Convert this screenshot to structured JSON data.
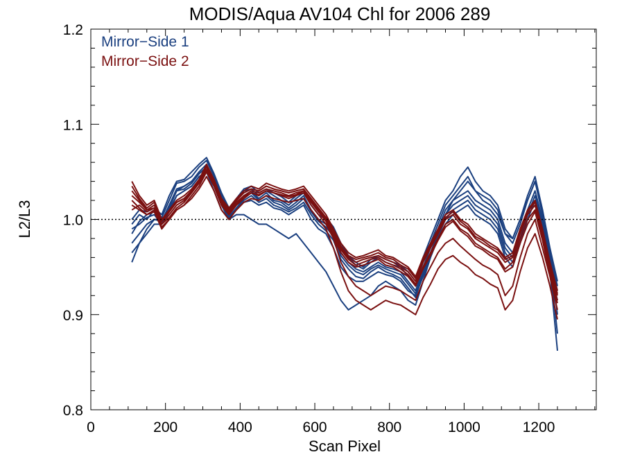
{
  "chart_data": {
    "type": "line",
    "title": "MODIS/Aqua AV104 Chl for 2006 289",
    "xlabel": "Scan Pixel",
    "ylabel": "L2/L3",
    "xlim": [
      0,
      1354
    ],
    "ylim": [
      0.8,
      1.2
    ],
    "xticks": [
      0,
      200,
      400,
      600,
      800,
      1000,
      1200
    ],
    "yticks": [
      0.8,
      0.9,
      1.0,
      1.1,
      1.2
    ],
    "xtick_labels": [
      "0",
      "200",
      "400",
      "600",
      "800",
      "1000",
      "1200"
    ],
    "ytick_labels": [
      "0.8",
      "0.9",
      "1.0",
      "1.1",
      "1.2"
    ],
    "reference_line": {
      "y": 1.0,
      "style": "dotted"
    },
    "legend": {
      "placement": "top-left",
      "entries": [
        "Mirror−Side 1",
        "Mirror−Side 2"
      ]
    },
    "colors": {
      "mirror_side_1": "#1a3f7f",
      "mirror_side_2": "#7a1010"
    },
    "x": [
      110,
      130,
      150,
      170,
      190,
      210,
      230,
      250,
      270,
      290,
      310,
      330,
      350,
      370,
      390,
      410,
      430,
      450,
      470,
      490,
      510,
      530,
      550,
      570,
      590,
      610,
      630,
      650,
      670,
      690,
      710,
      730,
      750,
      770,
      790,
      810,
      830,
      850,
      870,
      890,
      910,
      930,
      950,
      970,
      990,
      1010,
      1030,
      1050,
      1070,
      1090,
      1110,
      1130,
      1150,
      1170,
      1190,
      1210,
      1230,
      1250
    ],
    "series": [
      {
        "group": "Mirror−Side 1",
        "values": [
          0.985,
          0.998,
          1.005,
          1.008,
          0.998,
          1.015,
          1.032,
          1.035,
          1.04,
          1.05,
          1.058,
          1.04,
          1.02,
          1.005,
          1.015,
          1.025,
          1.03,
          1.022,
          1.028,
          1.02,
          1.018,
          1.012,
          1.018,
          1.025,
          1.01,
          1.0,
          0.995,
          0.985,
          0.965,
          0.955,
          0.948,
          0.945,
          0.95,
          0.955,
          0.95,
          0.948,
          0.945,
          0.935,
          0.925,
          0.95,
          0.97,
          0.99,
          1.01,
          1.02,
          1.025,
          1.03,
          1.02,
          1.015,
          1.01,
          1.0,
          0.975,
          0.965,
          0.985,
          1.01,
          1.03,
          1.0,
          0.96,
          0.925
        ]
      },
      {
        "group": "Mirror−Side 1",
        "values": [
          0.995,
          1.005,
          1.0,
          1.01,
          1.002,
          1.02,
          1.038,
          1.04,
          1.045,
          1.055,
          1.062,
          1.045,
          1.025,
          1.01,
          1.02,
          1.03,
          1.032,
          1.025,
          1.03,
          1.025,
          1.02,
          1.015,
          1.022,
          1.028,
          1.015,
          1.005,
          1.0,
          0.99,
          0.97,
          0.96,
          0.952,
          0.948,
          0.955,
          0.96,
          0.955,
          0.952,
          0.95,
          0.94,
          0.93,
          0.955,
          0.975,
          0.995,
          1.015,
          1.025,
          1.035,
          1.045,
          1.03,
          1.025,
          1.02,
          1.01,
          0.985,
          0.975,
          0.995,
          1.02,
          1.04,
          1.005,
          0.965,
          0.93
        ]
      },
      {
        "group": "Mirror−Side 1",
        "values": [
          0.965,
          0.975,
          0.985,
          0.995,
          0.995,
          1.008,
          1.025,
          1.03,
          1.035,
          1.045,
          1.05,
          1.035,
          1.015,
          1.0,
          1.01,
          1.018,
          1.02,
          1.015,
          1.018,
          1.012,
          1.01,
          1.005,
          1.01,
          1.015,
          1.0,
          0.99,
          0.985,
          0.97,
          0.95,
          0.94,
          0.935,
          0.935,
          0.94,
          0.945,
          0.942,
          0.94,
          0.935,
          0.925,
          0.92,
          0.94,
          0.96,
          0.98,
          0.995,
          1.005,
          1.01,
          1.015,
          1.005,
          1.0,
          0.995,
          0.985,
          0.96,
          0.95,
          0.975,
          1.0,
          1.02,
          0.99,
          0.95,
          0.915
        ]
      },
      {
        "group": "Mirror−Side 1",
        "values": [
          0.955,
          0.975,
          0.99,
          1.0,
          1.0,
          1.01,
          1.025,
          1.03,
          1.035,
          1.045,
          1.05,
          1.03,
          1.01,
          1.0,
          1.005,
          1.005,
          1.0,
          0.995,
          0.995,
          0.99,
          0.985,
          0.98,
          0.985,
          0.975,
          0.965,
          0.955,
          0.945,
          0.93,
          0.915,
          0.905,
          0.91,
          0.915,
          0.92,
          0.93,
          0.935,
          0.93,
          0.925,
          0.915,
          0.91,
          0.935,
          0.96,
          0.985,
          1.005,
          1.02,
          1.03,
          1.04,
          1.03,
          1.02,
          1.015,
          1.005,
          0.985,
          0.98,
          1.0,
          1.02,
          1.04,
          1.01,
          0.96,
          0.9
        ]
      },
      {
        "group": "Mirror−Side 1",
        "values": [
          1.0,
          1.01,
          1.008,
          1.012,
          1.005,
          1.025,
          1.04,
          1.042,
          1.05,
          1.058,
          1.065,
          1.048,
          1.028,
          1.012,
          1.022,
          1.032,
          1.035,
          1.028,
          1.032,
          1.028,
          1.024,
          1.018,
          1.025,
          1.03,
          1.018,
          1.008,
          1.002,
          0.992,
          0.975,
          0.962,
          0.955,
          0.95,
          0.958,
          0.962,
          0.958,
          0.955,
          0.952,
          0.945,
          0.935,
          0.96,
          0.98,
          1.0,
          1.02,
          1.03,
          1.045,
          1.055,
          1.04,
          1.03,
          1.025,
          1.015,
          0.99,
          0.98,
          1.0,
          1.025,
          1.045,
          1.01,
          0.97,
          0.935
        ]
      },
      {
        "group": "Mirror−Side 1",
        "values": [
          0.99,
          0.995,
          1.002,
          1.005,
          0.995,
          1.012,
          1.03,
          1.032,
          1.038,
          1.048,
          1.055,
          1.038,
          1.018,
          1.003,
          1.012,
          1.022,
          1.028,
          1.02,
          1.025,
          1.018,
          1.015,
          1.01,
          1.015,
          1.022,
          1.008,
          0.998,
          0.992,
          0.982,
          0.962,
          0.952,
          0.945,
          0.942,
          0.948,
          0.952,
          0.948,
          0.945,
          0.942,
          0.932,
          0.922,
          0.945,
          0.965,
          0.985,
          1.005,
          1.015,
          1.02,
          1.025,
          1.015,
          1.01,
          1.005,
          0.995,
          0.97,
          0.96,
          0.98,
          1.005,
          1.025,
          0.995,
          0.955,
          0.88
        ]
      },
      {
        "group": "Mirror−Side 1",
        "values": [
          0.975,
          0.985,
          0.995,
          1.0,
          0.998,
          1.015,
          1.03,
          1.035,
          1.04,
          1.048,
          1.055,
          1.035,
          1.018,
          1.002,
          1.012,
          1.02,
          1.025,
          1.018,
          1.022,
          1.015,
          1.012,
          1.008,
          1.012,
          1.018,
          1.005,
          0.995,
          0.988,
          0.978,
          0.958,
          0.948,
          0.94,
          0.938,
          0.945,
          0.95,
          0.945,
          0.942,
          0.938,
          0.928,
          0.918,
          0.942,
          0.962,
          0.982,
          1.0,
          1.01,
          1.015,
          1.02,
          1.01,
          1.005,
          1.0,
          0.99,
          0.965,
          0.955,
          0.975,
          1.0,
          1.02,
          0.985,
          0.945,
          0.862
        ]
      },
      {
        "group": "Mirror−Side 2",
        "values": [
          1.03,
          1.02,
          1.01,
          1.015,
          0.995,
          1.005,
          1.015,
          1.02,
          1.03,
          1.04,
          1.055,
          1.04,
          1.02,
          1.01,
          1.02,
          1.028,
          1.032,
          1.03,
          1.035,
          1.032,
          1.03,
          1.028,
          1.03,
          1.032,
          1.02,
          1.01,
          1.0,
          0.985,
          0.97,
          0.96,
          0.955,
          0.958,
          0.96,
          0.962,
          0.958,
          0.955,
          0.95,
          0.945,
          0.935,
          0.955,
          0.97,
          0.985,
          1.0,
          1.005,
          0.995,
          0.99,
          0.98,
          0.975,
          0.97,
          0.965,
          0.955,
          0.96,
          0.985,
          1.005,
          1.015,
          0.985,
          0.95,
          0.92
        ]
      },
      {
        "group": "Mirror−Side 2",
        "values": [
          1.04,
          1.025,
          1.015,
          1.02,
          1.0,
          1.01,
          1.02,
          1.025,
          1.032,
          1.042,
          1.058,
          1.042,
          1.022,
          1.012,
          1.022,
          1.03,
          1.035,
          1.032,
          1.038,
          1.035,
          1.032,
          1.03,
          1.032,
          1.035,
          1.025,
          1.015,
          1.005,
          0.99,
          0.975,
          0.965,
          0.96,
          0.962,
          0.965,
          0.968,
          0.962,
          0.96,
          0.955,
          0.95,
          0.94,
          0.96,
          0.975,
          0.99,
          1.005,
          1.01,
          1.0,
          0.995,
          0.985,
          0.98,
          0.975,
          0.97,
          0.96,
          0.965,
          0.99,
          1.01,
          1.02,
          0.99,
          0.955,
          0.925
        ]
      },
      {
        "group": "Mirror−Side 2",
        "values": [
          1.02,
          1.012,
          1.005,
          1.01,
          0.992,
          1.0,
          1.01,
          1.015,
          1.025,
          1.035,
          1.05,
          1.035,
          1.015,
          1.005,
          1.015,
          1.022,
          1.028,
          1.025,
          1.03,
          1.028,
          1.025,
          1.022,
          1.025,
          1.028,
          1.015,
          1.005,
          0.995,
          0.98,
          0.965,
          0.955,
          0.95,
          0.952,
          0.955,
          0.958,
          0.952,
          0.95,
          0.945,
          0.94,
          0.93,
          0.948,
          0.962,
          0.978,
          0.992,
          0.998,
          0.988,
          0.982,
          0.972,
          0.968,
          0.962,
          0.958,
          0.945,
          0.95,
          0.975,
          0.995,
          1.008,
          0.978,
          0.942,
          0.912
        ]
      },
      {
        "group": "Mirror−Side 2",
        "values": [
          1.01,
          1.015,
          1.008,
          1.012,
          0.995,
          1.002,
          1.012,
          1.018,
          1.028,
          1.038,
          1.052,
          1.038,
          1.018,
          1.008,
          1.018,
          1.025,
          1.03,
          1.028,
          1.032,
          1.03,
          1.028,
          1.025,
          1.028,
          1.03,
          1.018,
          1.008,
          0.998,
          0.982,
          0.968,
          0.958,
          0.952,
          0.955,
          0.958,
          0.96,
          0.955,
          0.952,
          0.948,
          0.942,
          0.932,
          0.95,
          0.965,
          0.98,
          0.995,
          1.0,
          0.99,
          0.985,
          0.975,
          0.97,
          0.965,
          0.96,
          0.948,
          0.955,
          0.98,
          1.0,
          1.01,
          0.982,
          0.945,
          0.915
        ]
      },
      {
        "group": "Mirror−Side 2",
        "values": [
          1.025,
          1.018,
          1.01,
          1.012,
          0.998,
          1.008,
          1.018,
          1.022,
          1.03,
          1.038,
          1.052,
          1.036,
          1.016,
          1.006,
          1.016,
          1.024,
          1.028,
          1.026,
          1.03,
          1.028,
          1.026,
          1.024,
          1.026,
          1.03,
          1.02,
          1.01,
          1.0,
          0.98,
          0.955,
          0.94,
          0.93,
          0.925,
          0.92,
          0.925,
          0.93,
          0.928,
          0.925,
          0.92,
          0.915,
          0.935,
          0.95,
          0.965,
          0.975,
          0.98,
          0.972,
          0.965,
          0.958,
          0.952,
          0.948,
          0.942,
          0.92,
          0.93,
          0.96,
          0.985,
          1.0,
          0.97,
          0.94,
          0.905
        ]
      },
      {
        "group": "Mirror−Side 2",
        "values": [
          1.015,
          1.01,
          1.005,
          1.008,
          0.99,
          1.0,
          1.01,
          1.015,
          1.022,
          1.032,
          1.045,
          1.03,
          1.01,
          1.0,
          1.01,
          1.018,
          1.022,
          1.02,
          1.025,
          1.022,
          1.02,
          1.018,
          1.02,
          1.022,
          1.01,
          1.0,
          0.99,
          0.97,
          0.945,
          0.925,
          0.915,
          0.91,
          0.905,
          0.91,
          0.915,
          0.912,
          0.91,
          0.905,
          0.9,
          0.918,
          0.932,
          0.948,
          0.958,
          0.962,
          0.955,
          0.95,
          0.942,
          0.938,
          0.932,
          0.928,
          0.905,
          0.915,
          0.945,
          0.97,
          0.985,
          0.96,
          0.93,
          0.895
        ]
      },
      {
        "group": "Mirror−Side 2",
        "values": [
          1.035,
          1.022,
          1.012,
          1.018,
          0.998,
          1.008,
          1.018,
          1.022,
          1.03,
          1.04,
          1.056,
          1.04,
          1.02,
          1.01,
          1.02,
          1.028,
          1.032,
          1.03,
          1.035,
          1.032,
          1.03,
          1.028,
          1.03,
          1.032,
          1.022,
          1.012,
          1.002,
          0.988,
          0.972,
          0.962,
          0.958,
          0.96,
          0.962,
          0.965,
          0.96,
          0.958,
          0.952,
          0.948,
          0.938,
          0.958,
          0.972,
          0.988,
          1.002,
          1.008,
          0.998,
          0.992,
          0.982,
          0.978,
          0.972,
          0.968,
          0.958,
          0.962,
          0.988,
          1.008,
          1.018,
          0.988,
          0.952,
          0.922
        ]
      }
    ]
  }
}
